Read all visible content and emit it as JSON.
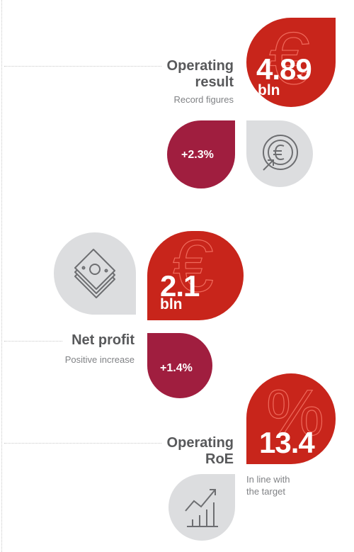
{
  "blocks": {
    "operating_result": {
      "title_line1": "Operating",
      "title_line2": "result",
      "subtitle": "Record figures",
      "value": "4.89",
      "unit": "bln",
      "change": "+2.3%",
      "watermark_symbol": "€",
      "icon": "euro-circle-icon"
    },
    "net_profit": {
      "title": "Net profit",
      "subtitle": "Positive increase",
      "value": "2.1",
      "unit": "bln",
      "change": "+1.4%",
      "watermark_symbol": "€",
      "icon": "banknotes-icon"
    },
    "operating_roe": {
      "title_line1": "Operating",
      "title_line2": "RoE",
      "value": "13.4",
      "note_line1": "In line with",
      "note_line2": "the target",
      "watermark_symbol": "%",
      "icon": "growth-chart-icon"
    }
  },
  "colors": {
    "red": "#c8251b",
    "wine": "#a01e3f",
    "grey": "#dcdddf",
    "text_dark": "#58595b",
    "text_light": "#808285"
  }
}
